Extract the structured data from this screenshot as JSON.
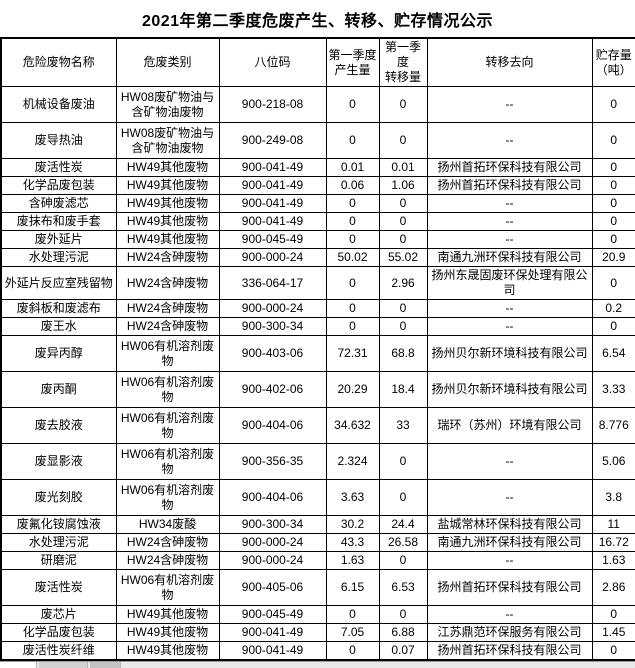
{
  "title": "2021年第二季度危废产生、转移、贮存情况公示",
  "colors": {
    "text": "#000000",
    "border": "#000000",
    "background": "#ffffff",
    "tab_strip": "#e9e9e9"
  },
  "table": {
    "columns": [
      {
        "key": "name",
        "label": "危险废物名称"
      },
      {
        "key": "category",
        "label": "危废类别"
      },
      {
        "key": "code",
        "label": "八位码"
      },
      {
        "key": "q1_produced",
        "label": "第一季度\n产生量"
      },
      {
        "key": "q1_transferred",
        "label": "第一季度\n转移量"
      },
      {
        "key": "destination",
        "label": "转移去向"
      },
      {
        "key": "storage",
        "label": "贮存量\n（吨）"
      }
    ],
    "rows": [
      {
        "name": "机械设备废油",
        "category": "HW08废矿物油与含矿物油废物",
        "code": "900-218-08",
        "q1_produced": "0",
        "q1_transferred": "0",
        "destination": "--",
        "storage": "0"
      },
      {
        "name": "废导热油",
        "category": "HW08废矿物油与含矿物油废物",
        "code": "900-249-08",
        "q1_produced": "0",
        "q1_transferred": "0",
        "destination": "--",
        "storage": "0"
      },
      {
        "name": "废活性炭",
        "category": "HW49其他废物",
        "code": "900-041-49",
        "q1_produced": "0.01",
        "q1_transferred": "0.01",
        "destination": "扬州首拓环保科技有限公司",
        "storage": "0"
      },
      {
        "name": "化学品废包装",
        "category": "HW49其他废物",
        "code": "900-041-49",
        "q1_produced": "0.06",
        "q1_transferred": "1.06",
        "destination": "扬州首拓环保科技有限公司",
        "storage": "0"
      },
      {
        "name": "含砷废滤芯",
        "category": "HW49其他废物",
        "code": "900-041-49",
        "q1_produced": "0",
        "q1_transferred": "0",
        "destination": "--",
        "storage": "0"
      },
      {
        "name": "废抹布和废手套",
        "category": "HW49其他废物",
        "code": "900-041-49",
        "q1_produced": "0",
        "q1_transferred": "0",
        "destination": "--",
        "storage": "0"
      },
      {
        "name": "废外延片",
        "category": "HW49其他废物",
        "code": "900-045-49",
        "q1_produced": "0",
        "q1_transferred": "0",
        "destination": "--",
        "storage": "0"
      },
      {
        "name": "水处理污泥",
        "category": "HW24含砷废物",
        "code": "900-000-24",
        "q1_produced": "50.02",
        "q1_transferred": "55.02",
        "destination": "南通九洲环保科技有限公司",
        "storage": "20.9"
      },
      {
        "name": "外延片反应室残留物",
        "category": "HW24含砷废物",
        "code": "336-064-17",
        "q1_produced": "0",
        "q1_transferred": "2.96",
        "destination": "扬州东晟固废环保处理有限公司",
        "storage": "0"
      },
      {
        "name": "废斜板和废滤布",
        "category": "HW24含砷废物",
        "code": "900-000-24",
        "q1_produced": "0",
        "q1_transferred": "0",
        "destination": "--",
        "storage": "0.2"
      },
      {
        "name": "废王水",
        "category": "HW24含砷废物",
        "code": "900-300-34",
        "q1_produced": "0",
        "q1_transferred": "0",
        "destination": "--",
        "storage": "0"
      },
      {
        "name": "废异丙醇",
        "category": "HW06有机溶剂废物",
        "code": "900-403-06",
        "q1_produced": "72.31",
        "q1_transferred": "68.8",
        "destination": "扬州贝尔新环境科技有限公司",
        "storage": "6.54"
      },
      {
        "name": "废丙酮",
        "category": "HW06有机溶剂废物",
        "code": "900-402-06",
        "q1_produced": "20.29",
        "q1_transferred": "18.4",
        "destination": "扬州贝尔新环境科技有限公司",
        "storage": "3.33"
      },
      {
        "name": "废去胶液",
        "category": "HW06有机溶剂废物",
        "code": "900-404-06",
        "q1_produced": "34.632",
        "q1_transferred": "33",
        "destination": "瑞环（苏州）环境有限公司",
        "storage": "8.776"
      },
      {
        "name": "废显影液",
        "category": "HW06有机溶剂废物",
        "code": "900-356-35",
        "q1_produced": "2.324",
        "q1_transferred": "0",
        "destination": "--",
        "storage": "5.06"
      },
      {
        "name": "废光刻胶",
        "category": "HW06有机溶剂废物",
        "code": "900-404-06",
        "q1_produced": "3.63",
        "q1_transferred": "0",
        "destination": "--",
        "storage": "3.8"
      },
      {
        "name": "废氟化铵腐蚀液",
        "category": "HW34废酸",
        "code": "900-300-34",
        "q1_produced": "30.2",
        "q1_transferred": "24.4",
        "destination": "盐城常林环保科技有限公司",
        "storage": "11"
      },
      {
        "name": "水处理污泥",
        "category": "HW24含砷废物",
        "code": "900-000-24",
        "q1_produced": "43.3",
        "q1_transferred": "26.58",
        "destination": "南通九洲环保科技有限公司",
        "storage": "16.72"
      },
      {
        "name": "研磨泥",
        "category": "HW24含砷废物",
        "code": "900-000-24",
        "q1_produced": "1.63",
        "q1_transferred": "0",
        "destination": "--",
        "storage": "1.63"
      },
      {
        "name": "废活性炭",
        "category": "HW06有机溶剂废物",
        "code": "900-405-06",
        "q1_produced": "6.15",
        "q1_transferred": "6.53",
        "destination": "扬州首拓环保科技有限公司",
        "storage": "2.86"
      },
      {
        "name": "废芯片",
        "category": "HW49其他废物",
        "code": "900-045-49",
        "q1_produced": "0",
        "q1_transferred": "0",
        "destination": "--",
        "storage": "0"
      },
      {
        "name": "化学品废包装",
        "category": "HW49其他废物",
        "code": "900-041-49",
        "q1_produced": "7.05",
        "q1_transferred": "6.88",
        "destination": "江苏鼎范环保服务有限公司",
        "storage": "1.45"
      },
      {
        "name": "废活性炭纤维",
        "category": "HW49其他废物",
        "code": "900-041-49",
        "q1_produced": "0",
        "q1_transferred": "0.07",
        "destination": "扬州首拓环保科技有限公司",
        "storage": "0"
      }
    ]
  }
}
